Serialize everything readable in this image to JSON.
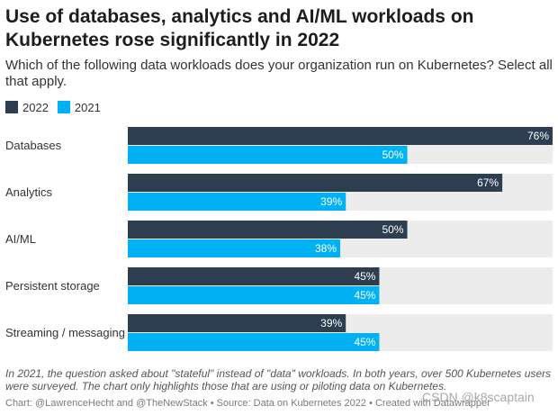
{
  "title": "Use of databases, analytics and AI/ML workloads on Kubernetes rose significantly in 2022",
  "subtitle": "Which of the following data workloads does your organization run on Kubernetes? Select all that apply.",
  "notes": "In 2021, the question asked about \"stateful\" instead of \"data\" workloads. In both years, over 500 Kubernetes users were surveyed. The chart only highlights those that are using or piloting data on Kubernetes.",
  "source": "Chart: @LawrenceHecht and @TheNewStack • Source: Data on Kubernetes 2022 • Created with Datawrapper",
  "watermark": "CSDN @k8scaptain",
  "colors": {
    "series_2022": "#2d3e50",
    "series_2021": "#00b2f4",
    "track": "#ececec"
  },
  "chart_data": {
    "type": "bar",
    "orientation": "horizontal",
    "categories": [
      "Databases",
      "Analytics",
      "AI/ML",
      "Persistent storage",
      "Streaming / messaging"
    ],
    "series": [
      {
        "name": "2022",
        "values": [
          76,
          67,
          50,
          45,
          39
        ]
      },
      {
        "name": "2021",
        "values": [
          50,
          39,
          38,
          45,
          45
        ]
      }
    ],
    "value_suffix": "%",
    "xlim": [
      0,
      76
    ],
    "legend": "top-left",
    "grid": false
  }
}
